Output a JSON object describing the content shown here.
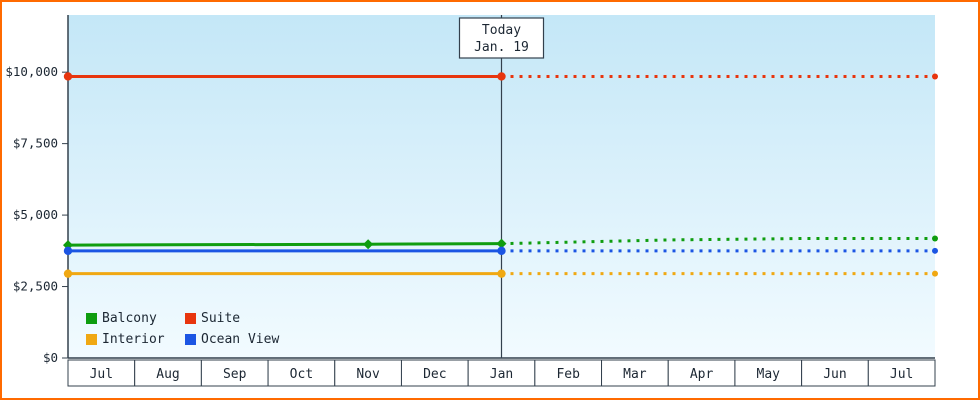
{
  "colors": {
    "frame_border": "#ff6a00",
    "axis": "#33404d",
    "text": "#1c2733",
    "plot_gradient_top": "#c4e7f7",
    "plot_gradient_bottom": "#f2fbff",
    "cell_background": "#ffffff"
  },
  "chart_data": {
    "type": "line",
    "title": "",
    "x_categories": [
      "Jul",
      "Aug",
      "Sep",
      "Oct",
      "Nov",
      "Dec",
      "Jan",
      "Feb",
      "Mar",
      "Apr",
      "May",
      "Jun",
      "Jul"
    ],
    "y_ticks": [
      {
        "label": "$0",
        "value": 0
      },
      {
        "label": "$2,500",
        "value": 2500
      },
      {
        "label": "$5,000",
        "value": 5000
      },
      {
        "label": "$7,500",
        "value": 7500
      },
      {
        "label": "$10,000",
        "value": 10000
      }
    ],
    "ylim": [
      0,
      12000
    ],
    "x_axis_units": "months",
    "grid": "off",
    "today": {
      "line1": "Today",
      "line2": "Jan. 19",
      "position": 6.5
    },
    "series": [
      {
        "name": "Balcony",
        "color": "#0f9d0f",
        "marker_shape": "diamond",
        "solid": [
          [
            0,
            3950
          ],
          [
            4.5,
            3980
          ],
          [
            6.5,
            4000
          ]
        ],
        "dotted": [
          [
            6.5,
            4000
          ],
          [
            9,
            4130
          ],
          [
            11,
            4180
          ],
          [
            13,
            4180
          ]
        ],
        "markers": [
          [
            0,
            3950
          ],
          [
            4.5,
            3980
          ],
          [
            6.5,
            4000
          ]
        ],
        "end_marker": [
          13,
          4180
        ]
      },
      {
        "name": "Suite",
        "color": "#e8350e",
        "marker_shape": "circle",
        "solid": [
          [
            0,
            9850
          ],
          [
            6.5,
            9850
          ]
        ],
        "dotted": [
          [
            6.5,
            9850
          ],
          [
            13,
            9850
          ]
        ],
        "markers": [
          [
            0,
            9850
          ],
          [
            6.5,
            9850
          ]
        ],
        "end_marker": [
          13,
          9850
        ]
      },
      {
        "name": "Interior",
        "color": "#f0a812",
        "marker_shape": "circle",
        "solid": [
          [
            0,
            2950
          ],
          [
            6.5,
            2950
          ]
        ],
        "dotted": [
          [
            6.5,
            2950
          ],
          [
            13,
            2950
          ]
        ],
        "markers": [
          [
            0,
            2950
          ],
          [
            6.5,
            2950
          ]
        ],
        "end_marker": [
          13,
          2950
        ]
      },
      {
        "name": "Ocean View",
        "color": "#1b55e3",
        "marker_shape": "circle",
        "solid": [
          [
            0,
            3750
          ],
          [
            6.5,
            3750
          ]
        ],
        "dotted": [
          [
            6.5,
            3750
          ],
          [
            13,
            3750
          ]
        ],
        "markers": [
          [
            0,
            3750
          ],
          [
            6.5,
            3750
          ]
        ],
        "end_marker": [
          13,
          3750
        ]
      }
    ],
    "legend": {
      "position": "bottom-left-inside",
      "order": [
        "Balcony",
        "Suite",
        "Interior",
        "Ocean View"
      ]
    }
  }
}
